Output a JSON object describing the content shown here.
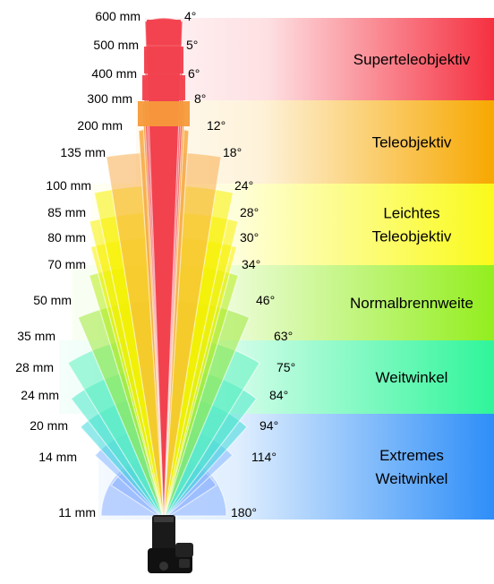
{
  "categories": [
    {
      "name": "Superteleobjektiv",
      "lines": [
        "Superteleobjektiv"
      ],
      "color": "#f53040",
      "rows": [
        0,
        2
      ]
    },
    {
      "name": "Teleobjektiv",
      "lines": [
        "Teleobjektiv"
      ],
      "color": "#f7a800",
      "rows": [
        3,
        5
      ]
    },
    {
      "name": "Leichtes Teleobjektiv",
      "lines": [
        "Leichtes",
        "Teleobjektiv"
      ],
      "color": "#fafa1a",
      "rows": [
        6,
        8
      ]
    },
    {
      "name": "Normalbrennweite",
      "lines": [
        "Normalbrennweite"
      ],
      "color": "#93ee1e",
      "rows": [
        9,
        10
      ]
    },
    {
      "name": "Weitwinkel",
      "lines": [
        "Weitwinkel"
      ],
      "color": "#2ff59a",
      "rows": [
        11,
        13
      ]
    },
    {
      "name": "Extremes Weitwinkel",
      "lines": [
        "Extremes",
        "Weitwinkel"
      ],
      "color": "#2e8ef8",
      "rows": [
        14,
        16
      ]
    }
  ],
  "focal_lengths": [
    {
      "focal": "600 mm",
      "angle": "4°",
      "color": "#f2424f"
    },
    {
      "focal": "500 mm",
      "angle": "5°",
      "color": "#f2424f"
    },
    {
      "focal": "400 mm",
      "angle": "6°",
      "color": "#f2424f"
    },
    {
      "focal": "300 mm",
      "angle": "8°",
      "color": "#f59a3a"
    },
    {
      "focal": "200 mm",
      "angle": "12°",
      "color": "#f7ad4c"
    },
    {
      "focal": "135 mm",
      "angle": "18°",
      "color": "#f7ad4c"
    },
    {
      "focal": "100 mm",
      "angle": "24°",
      "color": "#f8f000"
    },
    {
      "focal": "85 mm",
      "angle": "28°",
      "color": "#f8f000"
    },
    {
      "focal": "80 mm",
      "angle": "30°",
      "color": "#f8f000"
    },
    {
      "focal": "70 mm",
      "angle": "34°",
      "color": "#b6ec1a"
    },
    {
      "focal": "50 mm",
      "angle": "46°",
      "color": "#9ee83a"
    },
    {
      "focal": "35 mm",
      "angle": "63°",
      "color": "#5ef0c0"
    },
    {
      "focal": "28 mm",
      "angle": "75°",
      "color": "#48e8c8"
    },
    {
      "focal": "24 mm",
      "angle": "84°",
      "color": "#3cd8d8"
    },
    {
      "focal": "20 mm",
      "angle": "94°",
      "color": "#86b8ff"
    },
    {
      "focal": "14 mm",
      "angle": "114°",
      "color": "#8ab0ff"
    },
    {
      "focal": "11 mm",
      "angle": "180°",
      "color": "#8ab0ff"
    }
  ]
}
